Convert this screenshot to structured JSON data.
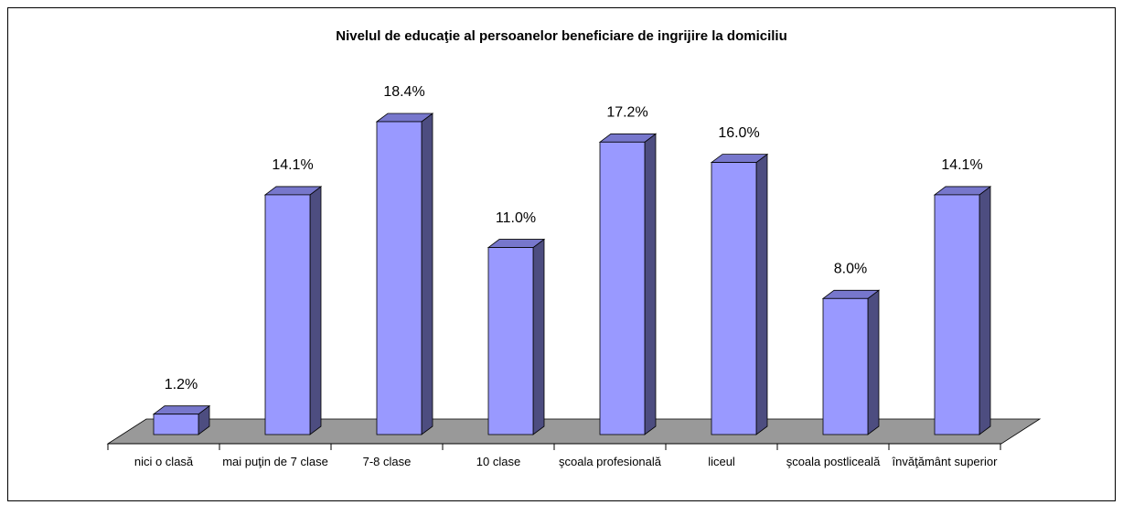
{
  "chart_data": {
    "type": "bar3d",
    "title": "Nivelul de educaţie al persoanelor beneficiare de ingrijire la domiciliu",
    "categories": [
      "nici o clasă",
      "mai puţin de 7 clase",
      "7-8 clase",
      "10 clase",
      "şcoala profesională",
      "liceul",
      "şcoala postliceală",
      "învăţământ superior"
    ],
    "values": [
      1.2,
      14.1,
      18.4,
      11.0,
      17.2,
      16.0,
      8.0,
      14.1
    ],
    "value_labels": [
      "1.2%",
      "14.1%",
      "18.4%",
      "11.0%",
      "17.2%",
      "16.0%",
      "8.0%",
      "14.1%"
    ],
    "color": "#9999ff"
  }
}
